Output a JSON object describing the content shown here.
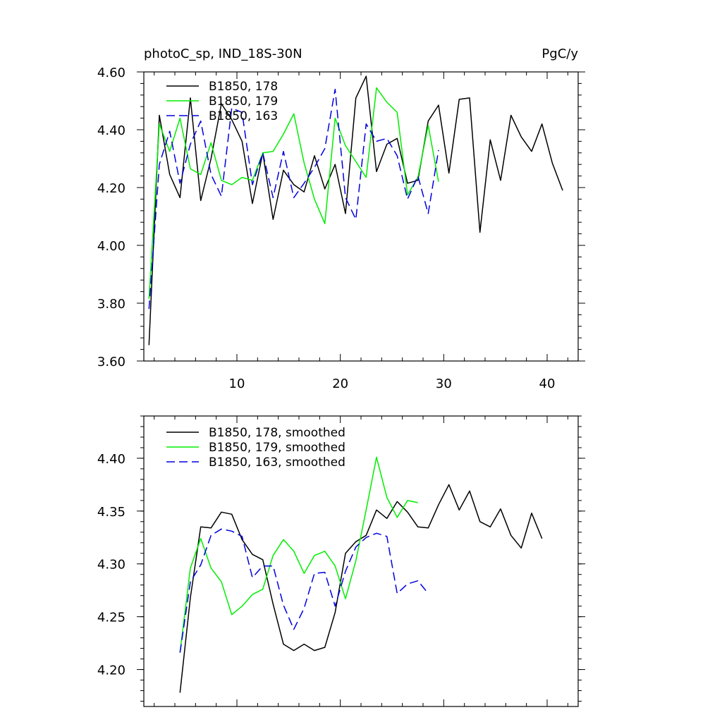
{
  "chart_data": [
    {
      "type": "line",
      "title_left": "photoC_sp, IND_18S-30N",
      "title_right": "PgC/y",
      "xlim": [
        1,
        43
      ],
      "ylim": [
        3.6,
        4.6
      ],
      "x_ticks": [
        10,
        20,
        30,
        40
      ],
      "y_ticks": [
        3.6,
        3.8,
        4.0,
        4.2,
        4.4,
        4.6
      ],
      "y_tick_labels": [
        "3.60",
        "3.80",
        "4.00",
        "4.20",
        "4.40",
        "4.60"
      ],
      "x_tick_labels": [
        "10",
        "20",
        "30",
        "40"
      ],
      "series": [
        {
          "name": "B1850, 178",
          "color": "#000000",
          "dash": "solid",
          "x_start": 1.5,
          "values": [
            3.655,
            4.45,
            4.245,
            4.165,
            4.51,
            4.155,
            4.3,
            4.49,
            4.435,
            4.36,
            4.145,
            4.32,
            4.09,
            4.26,
            4.21,
            4.185,
            4.31,
            4.195,
            4.28,
            4.11,
            4.51,
            4.585,
            4.255,
            4.35,
            4.37,
            4.215,
            4.225,
            4.43,
            4.485,
            4.25,
            4.505,
            4.51,
            4.045,
            4.365,
            4.225,
            4.45,
            4.375,
            4.325,
            4.42,
            4.285,
            4.19
          ]
        },
        {
          "name": "B1850, 179",
          "color": "#00ee00",
          "dash": "solid",
          "x_start": 1.5,
          "values": [
            3.815,
            4.42,
            4.325,
            4.44,
            4.265,
            4.245,
            4.355,
            4.225,
            4.21,
            4.235,
            4.225,
            4.32,
            4.325,
            4.385,
            4.455,
            4.285,
            4.16,
            4.075,
            4.44,
            4.345,
            4.29,
            4.235,
            4.545,
            4.495,
            4.46,
            4.175,
            4.235,
            4.415,
            4.22
          ]
        },
        {
          "name": "B1850, 163",
          "color": "#0000dd",
          "dash": "dashed",
          "x_start": 1.5,
          "values": [
            3.78,
            4.28,
            4.395,
            4.215,
            4.35,
            4.43,
            4.245,
            4.17,
            4.475,
            4.46,
            4.21,
            4.32,
            4.165,
            4.325,
            4.165,
            4.215,
            4.27,
            4.335,
            4.54,
            4.165,
            4.09,
            4.42,
            4.36,
            4.37,
            4.31,
            4.16,
            4.24,
            4.11,
            4.33
          ]
        }
      ]
    },
    {
      "type": "line",
      "xlim": [
        1,
        43
      ],
      "ylim": [
        4.165,
        4.44
      ],
      "x_ticks": [
        10,
        20,
        30,
        40
      ],
      "y_ticks": [
        4.2,
        4.25,
        4.3,
        4.35,
        4.4
      ],
      "y_tick_labels": [
        "4.20",
        "4.25",
        "4.30",
        "4.35",
        "4.40"
      ],
      "series": [
        {
          "name": "B1850, 178, smoothed",
          "color": "#000000",
          "dash": "solid",
          "x_start": 4.5,
          "values": [
            4.178,
            4.268,
            4.335,
            4.334,
            4.349,
            4.347,
            4.323,
            4.309,
            4.304,
            4.262,
            4.224,
            4.218,
            4.224,
            4.218,
            4.221,
            4.254,
            4.31,
            4.321,
            4.327,
            4.351,
            4.343,
            4.359,
            4.349,
            4.335,
            4.334,
            4.356,
            4.375,
            4.351,
            4.369,
            4.34,
            4.335,
            4.352,
            4.327,
            4.315,
            4.348,
            4.324
          ]
        },
        {
          "name": "B1850, 179, smoothed",
          "color": "#00ee00",
          "dash": "solid",
          "x_start": 4.5,
          "values": [
            4.216,
            4.296,
            4.324,
            4.296,
            4.283,
            4.252,
            4.26,
            4.271,
            4.276,
            4.308,
            4.323,
            4.312,
            4.291,
            4.308,
            4.312,
            4.298,
            4.267,
            4.303,
            4.351,
            4.401,
            4.363,
            4.344,
            4.36,
            4.358
          ]
        },
        {
          "name": "B1850, 163, smoothed",
          "color": "#0000dd",
          "dash": "dashed",
          "x_start": 4.5,
          "values": [
            4.216,
            4.283,
            4.299,
            4.327,
            4.333,
            4.331,
            4.326,
            4.287,
            4.298,
            4.298,
            4.261,
            4.238,
            4.258,
            4.291,
            4.292,
            4.26,
            4.293,
            4.316,
            4.325,
            4.329,
            4.326,
            4.272,
            4.281,
            4.284,
            4.272
          ]
        }
      ]
    }
  ]
}
